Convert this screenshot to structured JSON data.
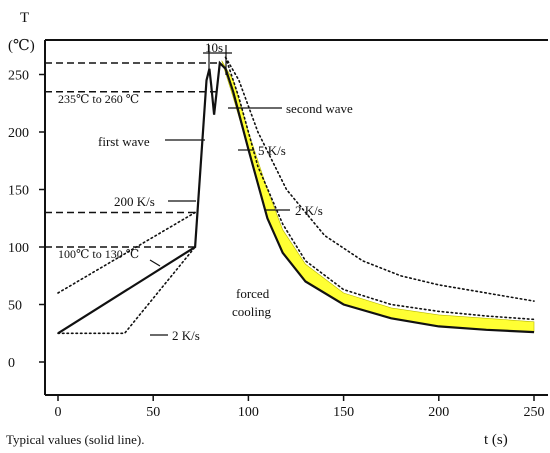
{
  "chart_data": {
    "type": "line",
    "xlabel": "t (s)",
    "ylabel_letter": "T",
    "ylabel_unit": "(℃)",
    "xlim": [
      0,
      250
    ],
    "ylim": [
      0,
      280
    ],
    "xticks": [
      0,
      50,
      100,
      150,
      200,
      250
    ],
    "yticks": [
      0,
      50,
      100,
      150,
      200,
      250
    ],
    "caption": "Typical values (solid line).",
    "series": [
      {
        "style": "solid",
        "x": [
          0,
          72,
          78,
          79.5,
          80.5,
          82,
          85,
          88,
          92,
          100,
          110,
          118,
          130,
          150,
          175,
          200,
          225,
          250
        ],
        "y": [
          25,
          100,
          245,
          255,
          240,
          215,
          260,
          255,
          235,
          185,
          125,
          95,
          70,
          50,
          38,
          31,
          28,
          26
        ]
      },
      {
        "style": "dotted-lower",
        "x": [
          0,
          35,
          72
        ],
        "y": [
          25,
          25,
          100
        ]
      },
      {
        "style": "dotted-upper",
        "x": [
          0,
          72
        ],
        "y": [
          60,
          130
        ]
      },
      {
        "style": "dotted-2Ks",
        "x": [
          88,
          95,
          105,
          120,
          140,
          160,
          180,
          200,
          225,
          250
        ],
        "y": [
          265,
          245,
          200,
          150,
          110,
          88,
          75,
          67,
          60,
          53
        ]
      },
      {
        "style": "dotted-5Ks",
        "x": [
          88,
          95,
          105,
          118,
          130,
          150,
          175,
          200,
          225,
          250
        ],
        "y": [
          265,
          230,
          170,
          120,
          88,
          63,
          50,
          44,
          40,
          37
        ]
      },
      {
        "style": "band",
        "x": [
          86,
          92,
          100,
          110,
          118,
          130,
          150,
          175,
          200,
          225,
          250
        ],
        "lower": [
          262,
          230,
          185,
          125,
          95,
          70,
          50,
          38,
          31,
          28,
          26
        ],
        "upper": [
          262,
          245,
          200,
          150,
          115,
          85,
          60,
          47,
          41,
          38,
          35
        ]
      }
    ],
    "reference_lines": [
      {
        "style": "dashed",
        "y": 260,
        "x_end": 84
      },
      {
        "style": "dashed",
        "y": 235,
        "x_end": 84
      },
      {
        "style": "dashed",
        "y": 130,
        "x_end": 72
      },
      {
        "style": "dashed",
        "y": 100,
        "x_end": 72
      }
    ],
    "annotations": {
      "ten_s": "10s",
      "range_high": "235℃ to 260 ℃",
      "range_low": "100℃ to 130 ℃",
      "first_wave": "first wave",
      "second_wave": "second wave",
      "rate_200": "200 K/s",
      "rate_5": "5 K/s",
      "rate_2_upper": "2 K/s",
      "rate_2_lower": "2 K/s",
      "forced_cooling_line1": "forced",
      "forced_cooling_line2": "cooling"
    },
    "colors": {
      "band": "#ffff33",
      "line": "#111111"
    }
  }
}
